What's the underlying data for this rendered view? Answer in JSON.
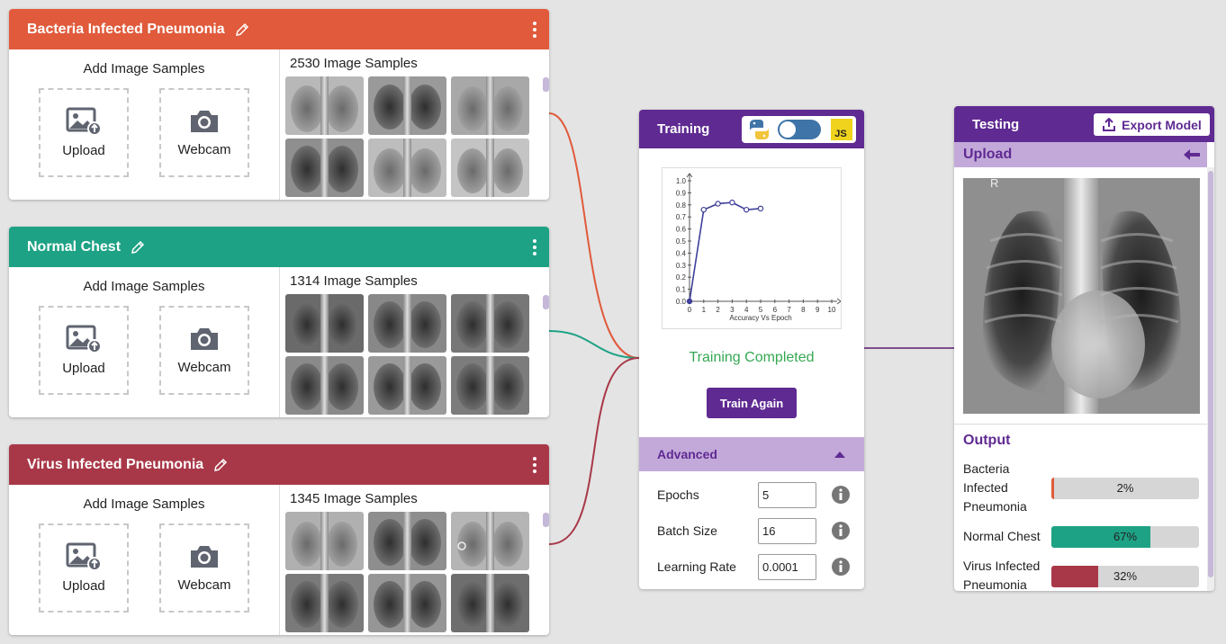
{
  "colors": {
    "bacteria": "#e05a3b",
    "normal": "#1ea285",
    "virus": "#a83848",
    "purple": "#5f2a92",
    "lavender": "#c3a9d9",
    "success": "#34a853"
  },
  "classes": [
    {
      "name": "Bacteria Infected Pneumonia",
      "add_title": "Add Image Samples",
      "upload_label": "Upload",
      "webcam_label": "Webcam",
      "sample_count": "2530 Image Samples"
    },
    {
      "name": "Normal Chest",
      "add_title": "Add Image Samples",
      "upload_label": "Upload",
      "webcam_label": "Webcam",
      "sample_count": "1314 Image Samples"
    },
    {
      "name": "Virus Infected Pneumonia",
      "add_title": "Add Image Samples",
      "upload_label": "Upload",
      "webcam_label": "Webcam",
      "sample_count": "1345 Image Samples"
    }
  ],
  "training": {
    "title": "Training",
    "backend_toggle": {
      "left_icon": "python-icon",
      "right_label": "JS",
      "state": "on"
    },
    "chart_data": {
      "type": "line",
      "title": "",
      "xlabel": "Accuracy Vs Epoch",
      "ylabel": "",
      "x": [
        0,
        1,
        2,
        3,
        4,
        5
      ],
      "values": [
        0.0,
        0.76,
        0.81,
        0.82,
        0.76,
        0.77
      ],
      "xlim": [
        0,
        10
      ],
      "ylim": [
        0,
        1.0
      ],
      "x_ticks": [
        "0",
        "1",
        "2",
        "3",
        "4",
        "5",
        "6",
        "7",
        "8",
        "9",
        "10"
      ],
      "y_ticks": [
        "0.0",
        "0.1",
        "0.2",
        "0.3",
        "0.4",
        "0.5",
        "0.6",
        "0.7",
        "0.8",
        "0.9",
        "1.0"
      ],
      "grid": false,
      "color": "#3f3f9a"
    },
    "status": "Training Completed",
    "train_again_label": "Train Again",
    "advanced_label": "Advanced",
    "params": [
      {
        "label": "Epochs",
        "value": "5"
      },
      {
        "label": "Batch Size",
        "value": "16"
      },
      {
        "label": "Learning Rate",
        "value": "0.0001"
      }
    ]
  },
  "testing": {
    "title": "Testing",
    "export_label": "Export Model",
    "upload_label": "Upload",
    "image_marker": "R",
    "output_title": "Output",
    "outputs": [
      {
        "label": "Bacteria Infected Pneumonia",
        "percent": 2,
        "percent_label": "2%"
      },
      {
        "label": "Normal Chest",
        "percent": 67,
        "percent_label": "67%"
      },
      {
        "label": "Virus Infected Pneumonia",
        "percent": 32,
        "percent_label": "32%"
      }
    ]
  }
}
